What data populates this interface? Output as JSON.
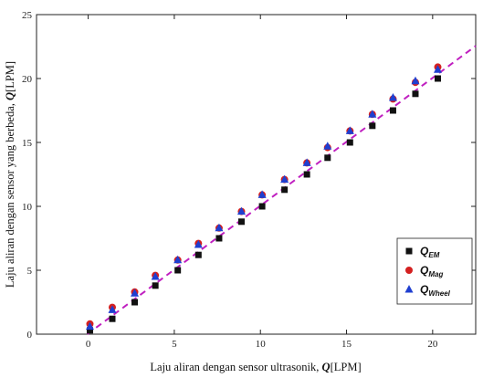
{
  "chart_data": {
    "type": "scatter",
    "xlabel": "Laju aliran dengan sensor ultrasonik, Q[LPM]",
    "xlabel_parts": [
      "Laju aliran dengan sensor ultrasonik, ",
      "Q",
      "[LPM]"
    ],
    "ylabel": "Laju aliran dengan sensor yang berbeda, Q[LPM]",
    "ylabel_parts": [
      "Laju aliran dengan sensor yang berbeda, ",
      "Q",
      "[LPM]"
    ],
    "xlim": [
      -3,
      22.5
    ],
    "ylim": [
      0,
      25
    ],
    "x_ticks": [
      0,
      5,
      10,
      15,
      20
    ],
    "y_ticks": [
      0,
      5,
      10,
      15,
      20,
      25
    ],
    "grid": false,
    "legend_position": "bottom-right",
    "reference_line": {
      "style": "dashed",
      "color": "#c020c0",
      "slope": 1.0,
      "intercept": 0.05
    },
    "series": [
      {
        "name": "Q_EM",
        "label_main": "Q",
        "label_sub": "EM",
        "marker": "square",
        "color": "#111111",
        "x": [
          0.1,
          1.4,
          2.7,
          3.9,
          5.2,
          6.4,
          7.6,
          8.9,
          10.1,
          11.4,
          12.7,
          13.9,
          15.2,
          16.5,
          17.7,
          19.0,
          20.3
        ],
        "y": [
          0.3,
          1.2,
          2.5,
          3.8,
          5.0,
          6.2,
          7.5,
          8.8,
          10.0,
          11.3,
          12.5,
          13.8,
          15.0,
          16.3,
          17.5,
          18.8,
          20.0
        ]
      },
      {
        "name": "Q_Mag",
        "label_main": "Q",
        "label_sub": "Mag",
        "marker": "circle",
        "color": "#d42020",
        "x": [
          0.1,
          1.4,
          2.7,
          3.9,
          5.2,
          6.4,
          7.6,
          8.9,
          10.1,
          11.4,
          12.7,
          13.9,
          15.2,
          16.5,
          17.7,
          19.0,
          20.3
        ],
        "y": [
          0.8,
          2.1,
          3.3,
          4.6,
          5.8,
          7.1,
          8.3,
          9.6,
          10.9,
          12.1,
          13.4,
          14.6,
          15.9,
          17.2,
          18.4,
          19.7,
          20.9
        ]
      },
      {
        "name": "Q_Wheel",
        "label_main": "Q",
        "label_sub": "Wheel",
        "marker": "triangle",
        "color": "#1f3fd0",
        "x": [
          0.1,
          1.4,
          2.7,
          3.9,
          5.2,
          6.4,
          7.6,
          8.9,
          10.1,
          11.4,
          12.7,
          13.9,
          15.2,
          16.5,
          17.7,
          19.0,
          20.3
        ],
        "y": [
          0.6,
          1.9,
          3.2,
          4.5,
          5.8,
          7.0,
          8.3,
          9.6,
          10.9,
          12.1,
          13.4,
          14.7,
          15.9,
          17.2,
          18.5,
          19.8,
          20.7
        ]
      }
    ]
  }
}
